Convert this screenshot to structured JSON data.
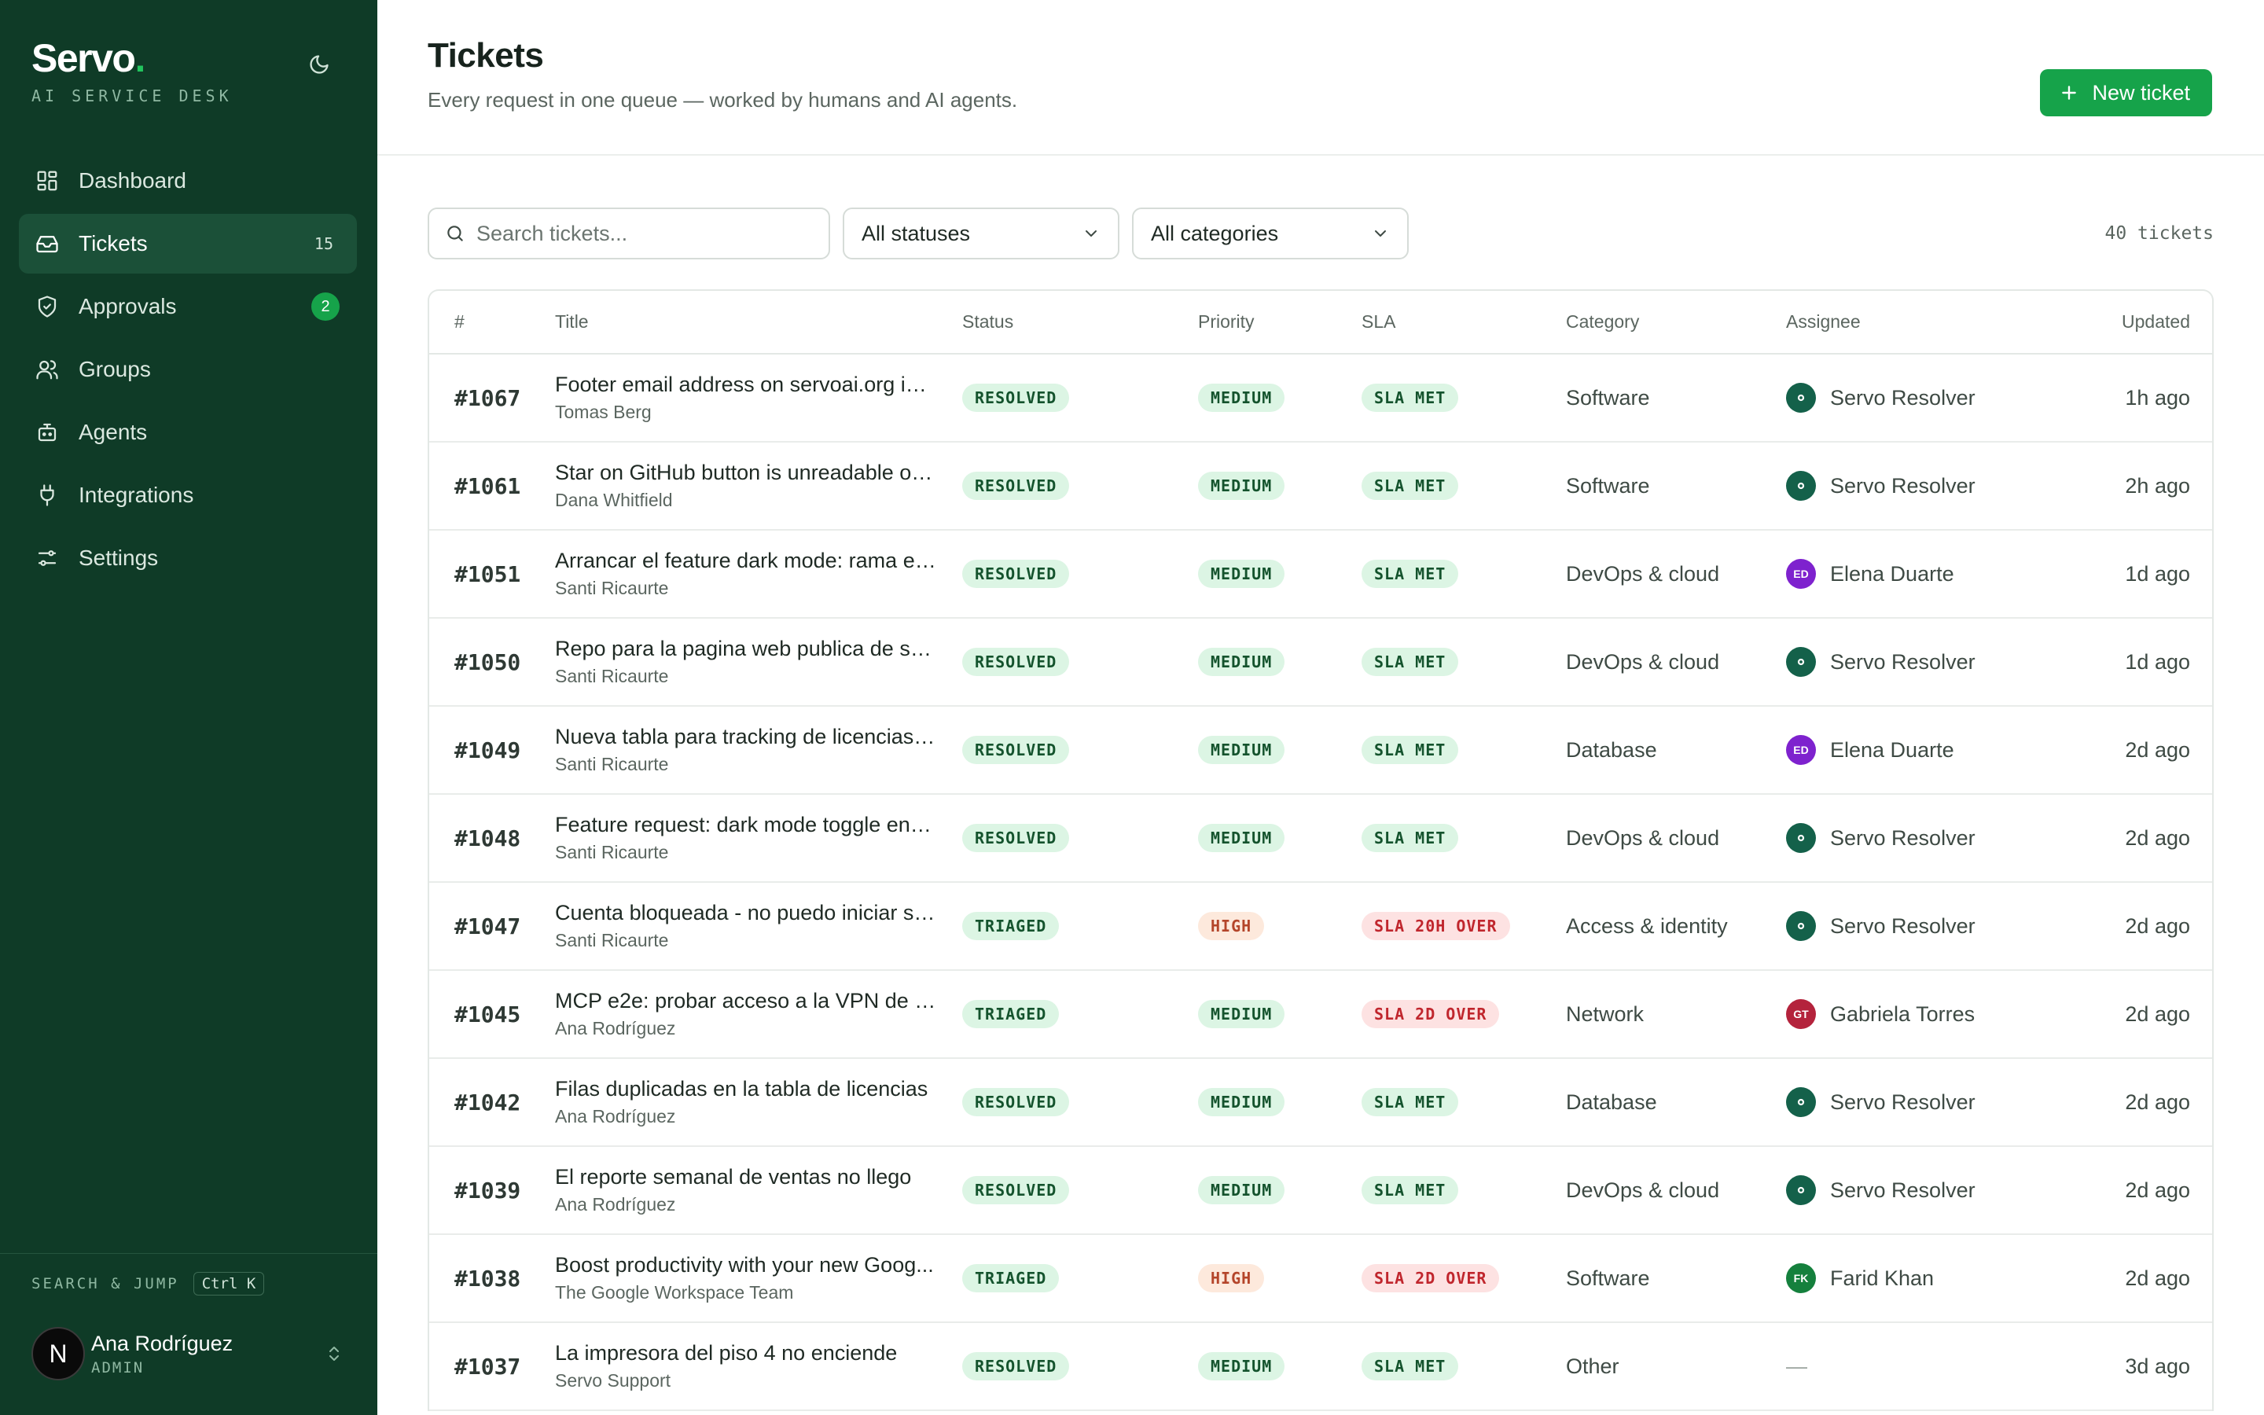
{
  "sidebar": {
    "brand": "Servo",
    "brand_dot": ".",
    "brand_sub": "AI SERVICE DESK",
    "theme_icon": "moon-icon",
    "nav": [
      {
        "label": "Dashboard",
        "icon": "dashboard-icon",
        "count": "",
        "badge": ""
      },
      {
        "label": "Tickets",
        "icon": "inbox-icon",
        "count": "15",
        "badge": "",
        "active": true
      },
      {
        "label": "Approvals",
        "icon": "shield-check-icon",
        "count": "",
        "badge": "2"
      },
      {
        "label": "Groups",
        "icon": "users-icon",
        "count": "",
        "badge": ""
      },
      {
        "label": "Agents",
        "icon": "bot-icon",
        "count": "",
        "badge": ""
      },
      {
        "label": "Integrations",
        "icon": "plug-icon",
        "count": "",
        "badge": ""
      },
      {
        "label": "Settings",
        "icon": "sliders-icon",
        "count": "",
        "badge": ""
      }
    ],
    "search_jump_label": "SEARCH & JUMP",
    "search_jump_kbd": "Ctrl K",
    "user": {
      "initial": "N",
      "name": "Ana Rodríguez",
      "role": "ADMIN"
    }
  },
  "header": {
    "title": "Tickets",
    "subtitle": "Every request in one queue — worked by humans and AI agents.",
    "new_button": "New ticket"
  },
  "filters": {
    "search_placeholder": "Search tickets...",
    "status": "All statuses",
    "category": "All categories",
    "count_label": "40 tickets"
  },
  "columns": [
    "#",
    "Title",
    "Status",
    "Priority",
    "SLA",
    "Category",
    "Assignee",
    "Updated"
  ],
  "colors": {
    "sidebar_bg": "#0f3b27",
    "accent": "#16a34a",
    "resolver_avatar": "#14614a",
    "elena_avatar": "#7e22ce",
    "gabriela_avatar": "#b4233c",
    "farid_avatar": "#15803d"
  },
  "tickets": [
    {
      "id": "#1067",
      "title": "Footer email address on servoai.org is h...",
      "requester": "Tomas Berg",
      "status": "RESOLVED",
      "priority": "MEDIUM",
      "sla": "SLA MET",
      "sla_tone": "green",
      "category": "Software",
      "assignee": "Servo Resolver",
      "assignee_initials": "",
      "assignee_icon": "gear-icon",
      "assignee_color": "#14614a",
      "updated": "1h ago"
    },
    {
      "id": "#1061",
      "title": "Star on GitHub button is unreadable on...",
      "requester": "Dana Whitfield",
      "status": "RESOLVED",
      "priority": "MEDIUM",
      "sla": "SLA MET",
      "sla_tone": "green",
      "category": "Software",
      "assignee": "Servo Resolver",
      "assignee_initials": "",
      "assignee_icon": "gear-icon",
      "assignee_color": "#14614a",
      "updated": "2h ago"
    },
    {
      "id": "#1051",
      "title": "Arrancar el feature dark mode: rama en...",
      "requester": "Santi Ricaurte",
      "status": "RESOLVED",
      "priority": "MEDIUM",
      "sla": "SLA MET",
      "sla_tone": "green",
      "category": "DevOps & cloud",
      "assignee": "Elena Duarte",
      "assignee_initials": "ED",
      "assignee_icon": "",
      "assignee_color": "#7e22ce",
      "updated": "1d ago"
    },
    {
      "id": "#1050",
      "title": "Repo para la pagina web publica de serv...",
      "requester": "Santi Ricaurte",
      "status": "RESOLVED",
      "priority": "MEDIUM",
      "sla": "SLA MET",
      "sla_tone": "green",
      "category": "DevOps & cloud",
      "assignee": "Servo Resolver",
      "assignee_initials": "",
      "assignee_icon": "gear-icon",
      "assignee_color": "#14614a",
      "updated": "1d ago"
    },
    {
      "id": "#1049",
      "title": "Nueva tabla para tracking de licencias d...",
      "requester": "Santi Ricaurte",
      "status": "RESOLVED",
      "priority": "MEDIUM",
      "sla": "SLA MET",
      "sla_tone": "green",
      "category": "Database",
      "assignee": "Elena Duarte",
      "assignee_initials": "ED",
      "assignee_icon": "",
      "assignee_color": "#7e22ce",
      "updated": "2d ago"
    },
    {
      "id": "#1048",
      "title": "Feature request: dark mode toggle en e...",
      "requester": "Santi Ricaurte",
      "status": "RESOLVED",
      "priority": "MEDIUM",
      "sla": "SLA MET",
      "sla_tone": "green",
      "category": "DevOps & cloud",
      "assignee": "Servo Resolver",
      "assignee_initials": "",
      "assignee_icon": "gear-icon",
      "assignee_color": "#14614a",
      "updated": "2d ago"
    },
    {
      "id": "#1047",
      "title": "Cuenta bloqueada - no puedo iniciar se...",
      "requester": "Santi Ricaurte",
      "status": "TRIAGED",
      "priority": "HIGH",
      "sla": "SLA 20H OVER",
      "sla_tone": "red",
      "category": "Access & identity",
      "assignee": "Servo Resolver",
      "assignee_initials": "",
      "assignee_icon": "gear-icon",
      "assignee_color": "#14614a",
      "updated": "2d ago"
    },
    {
      "id": "#1045",
      "title": "MCP e2e: probar acceso a la VPN de in...",
      "requester": "Ana Rodríguez",
      "status": "TRIAGED",
      "priority": "MEDIUM",
      "sla": "SLA 2D OVER",
      "sla_tone": "red",
      "category": "Network",
      "assignee": "Gabriela Torres",
      "assignee_initials": "GT",
      "assignee_icon": "",
      "assignee_color": "#b4233c",
      "updated": "2d ago"
    },
    {
      "id": "#1042",
      "title": "Filas duplicadas en la tabla de licencias",
      "requester": "Ana Rodríguez",
      "status": "RESOLVED",
      "priority": "MEDIUM",
      "sla": "SLA MET",
      "sla_tone": "green",
      "category": "Database",
      "assignee": "Servo Resolver",
      "assignee_initials": "",
      "assignee_icon": "gear-icon",
      "assignee_color": "#14614a",
      "updated": "2d ago"
    },
    {
      "id": "#1039",
      "title": "El reporte semanal de ventas no llego",
      "requester": "Ana Rodríguez",
      "status": "RESOLVED",
      "priority": "MEDIUM",
      "sla": "SLA MET",
      "sla_tone": "green",
      "category": "DevOps & cloud",
      "assignee": "Servo Resolver",
      "assignee_initials": "",
      "assignee_icon": "gear-icon",
      "assignee_color": "#14614a",
      "updated": "2d ago"
    },
    {
      "id": "#1038",
      "title": "Boost productivity with your new Goog...",
      "requester": "The Google Workspace Team",
      "status": "TRIAGED",
      "priority": "HIGH",
      "sla": "SLA 2D OVER",
      "sla_tone": "red",
      "category": "Software",
      "assignee": "Farid Khan",
      "assignee_initials": "FK",
      "assignee_icon": "",
      "assignee_color": "#15803d",
      "updated": "2d ago"
    },
    {
      "id": "#1037",
      "title": "La impresora del piso 4 no enciende",
      "requester": "Servo Support",
      "status": "RESOLVED",
      "priority": "MEDIUM",
      "sla": "SLA MET",
      "sla_tone": "green",
      "category": "Other",
      "assignee": "—",
      "assignee_initials": "",
      "assignee_icon": "",
      "assignee_color": "",
      "updated": "3d ago"
    }
  ]
}
